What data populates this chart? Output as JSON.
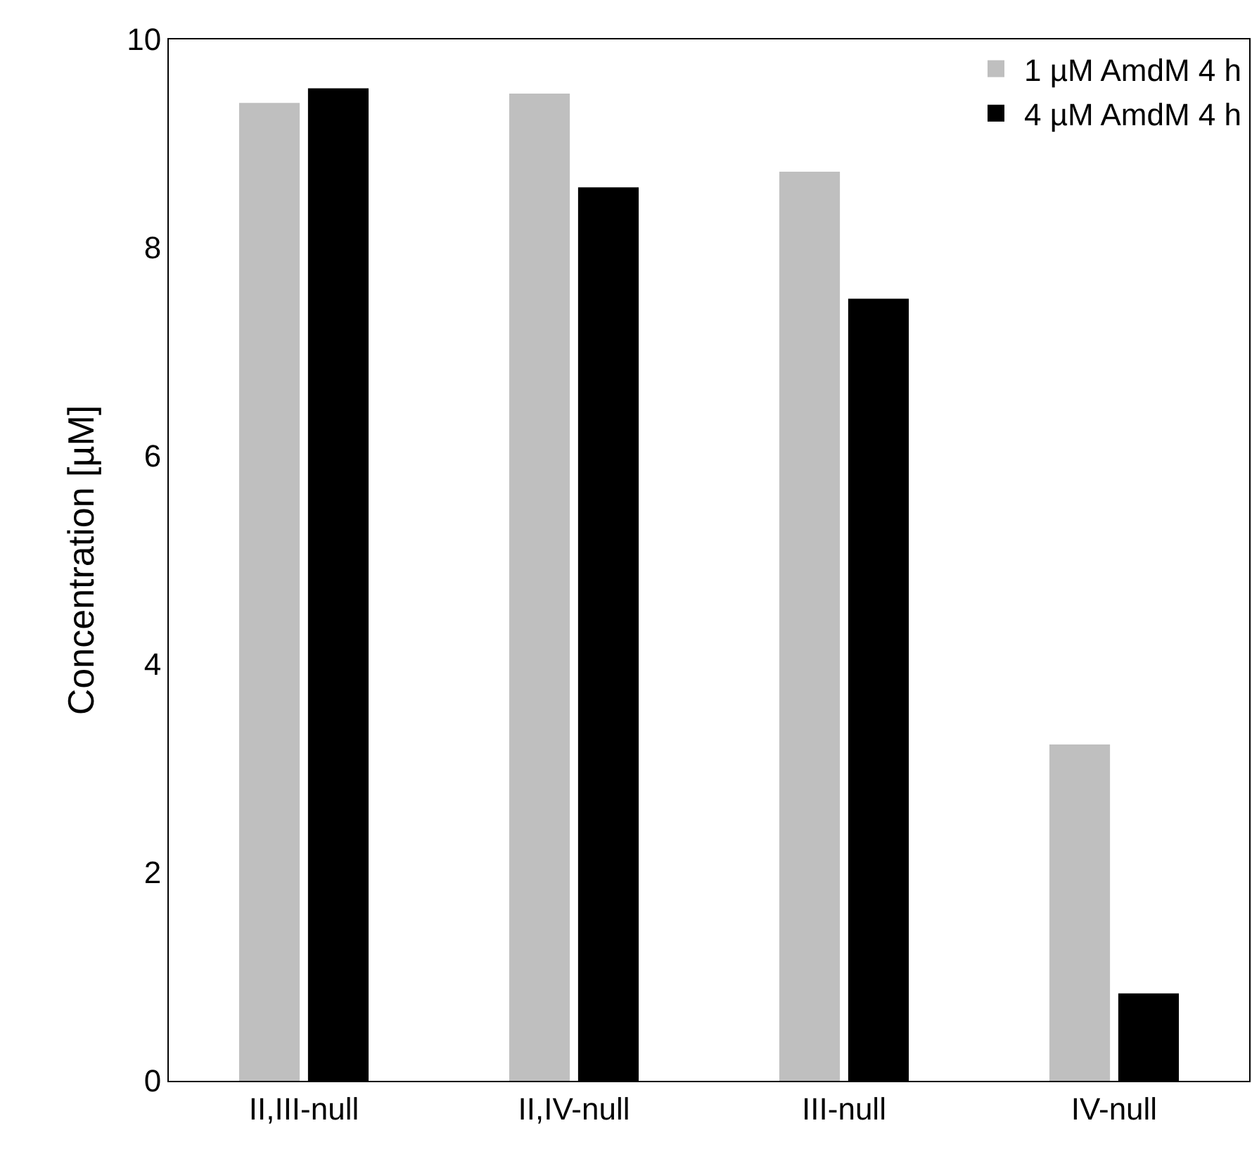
{
  "chart_data": {
    "type": "bar",
    "ylabel": "Concentration [µM]",
    "categories": [
      "II,III-null",
      "II,IV-null",
      "III-null",
      "IV-null"
    ],
    "series": [
      {
        "name": "1 µM AmdM 4 h",
        "color": "#bfbfbf",
        "values": [
          9.39,
          9.48,
          8.73,
          3.23
        ]
      },
      {
        "name": "4 µM AmdM 4 h",
        "color": "#000000",
        "values": [
          9.53,
          8.58,
          7.51,
          0.84
        ]
      }
    ],
    "ylim": [
      0,
      10
    ],
    "yticks": [
      0,
      2,
      4,
      6,
      8,
      10
    ],
    "grid": false,
    "legend": "top right"
  }
}
